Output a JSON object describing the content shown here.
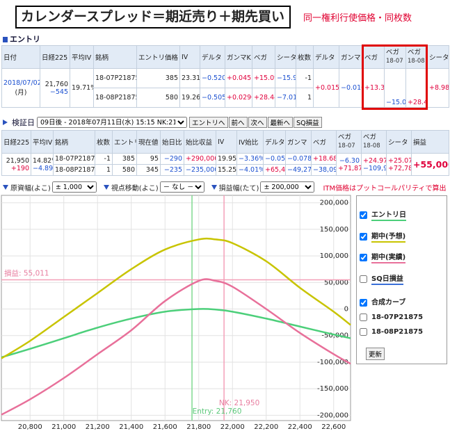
{
  "header": {
    "title": "カレンダースプレッド＝期近売り＋期先買い",
    "note": "同一権利行使価格・同枚数"
  },
  "entry": {
    "label": "エントリ",
    "headers": [
      "日付",
      "日経225",
      "平均IV",
      "銘柄",
      "エントリ価格",
      "IV",
      "デルタ",
      "ガンマK",
      "ベガ",
      "シータ",
      "枚数",
      "デルタ",
      "ガンマ",
      "ベガ",
      [
        "ベガ",
        "18-07"
      ],
      [
        "ベガ",
        "18-08"
      ],
      "シータ"
    ],
    "date": "2018/07/02",
    "weekday": "(月)",
    "nikkei": "21,760",
    "nikkei_change": "−545",
    "avg_iv": "19.71%",
    "rows": [
      [
        "18-07P21875",
        "385",
        "23.31%",
        "−0.520",
        "+0.0451",
        "+15.09",
        "−15.99",
        "-1"
      ],
      [
        "18-08P21875",
        "580",
        "19.26%",
        "−0.505",
        "+0.0290",
        "+28.44",
        "−7.01",
        "1"
      ]
    ],
    "totals": [
      "+0.015",
      "−0.0161",
      "+13.36",
      "−15.09",
      "+28.44",
      "+8.98"
    ]
  },
  "verify": {
    "label": "検証日",
    "select": "09日後 - 2018年07月11日(水) 15:15 NK:21950",
    "buttons": [
      "エントリへ",
      "前へ",
      "次へ",
      "最新へ",
      "SQ損益"
    ],
    "headers": [
      "日経225",
      "平均IV",
      "銘柄",
      "枚数",
      "エントリ",
      "現在値",
      "始日比",
      "始比収益",
      "IV",
      "IV始比",
      "デルタ",
      "ガンマ",
      "ベガ",
      [
        "ベガ",
        "18-07"
      ],
      [
        "ベガ",
        "18-08"
      ],
      "シータ",
      "損益"
    ],
    "nikkei": "21,950",
    "nikkei_change": "+190",
    "avg_iv": "14.82%",
    "avg_iv_change": "−4.89%",
    "rows": [
      [
        "18-07P21875",
        "-1",
        "385",
        "95",
        "−290",
        "+290,000",
        "19.95%",
        "−3.36%",
        "−0.054",
        "−0.0782",
        "+18.68"
      ],
      [
        "18-08P21875",
        "1",
        "580",
        "345",
        "−235",
        "−235,000",
        "15.25%",
        "−4.01%",
        "+65,496",
        "−49,276",
        "−38,092"
      ]
    ],
    "pairs": [
      [
        "−6.30",
        "+71,871"
      ],
      [
        "+24.97",
        "−109,963"
      ],
      [
        "+25.07",
        "+72,784"
      ]
    ],
    "pl": "+55,000"
  },
  "controls": [
    {
      "label": "原資幅(よこ)",
      "value": "± 1,000"
    },
    {
      "label": "視点移動(よこ)",
      "value": "－ なし －"
    },
    {
      "label": "損益幅(たて)",
      "value": "± 200,000"
    }
  ],
  "controls_note": "ITM価格はプットコールパリティで算出",
  "chart": {
    "type": "line",
    "xlim": [
      20630,
      22700
    ],
    "ylim": [
      -210000,
      214000
    ],
    "xticks": [
      {
        "value": 20800,
        "label": "20,800"
      },
      {
        "value": 21000,
        "label": "21,000"
      },
      {
        "value": 21200,
        "label": "21,200"
      },
      {
        "value": 21400,
        "label": "21,400"
      },
      {
        "value": 21600,
        "label": "21,600"
      },
      {
        "value": 21800,
        "label": "21,800"
      },
      {
        "value": 22000,
        "label": "22,000"
      },
      {
        "value": 22200,
        "label": "22,200"
      },
      {
        "value": 22400,
        "label": "22,400"
      },
      {
        "value": 22600,
        "label": "22,600"
      }
    ],
    "yticks": [
      {
        "value": 200000,
        "label": "200,000"
      },
      {
        "value": 150000,
        "label": "150,000"
      },
      {
        "value": 100000,
        "label": "100,000"
      },
      {
        "value": 50000,
        "label": "50,000"
      },
      0,
      {
        "value": -50000,
        "label": "-50,000"
      },
      {
        "value": -100000,
        "label": "-100,000"
      },
      {
        "value": -150000,
        "label": "-150,000"
      },
      {
        "value": -200000,
        "label": "-200,000"
      }
    ],
    "grid": true,
    "x": [
      20630,
      20800,
      21000,
      21200,
      21400,
      21600,
      21800,
      21900,
      22000,
      22200,
      22400,
      22600,
      22700
    ],
    "series": [
      {
        "name": "エントリ日",
        "color": "#4ccf7a",
        "checked": true,
        "values": [
          -91000,
          -75000,
          -55000,
          -35000,
          -18000,
          -5000,
          0,
          -1000,
          -5000,
          -18000,
          -33000,
          -48000,
          -55000
        ]
      },
      {
        "name": "期中(予想)",
        "color": "#c8c400",
        "checked": true,
        "values": [
          -93000,
          -60000,
          -15000,
          30000,
          75000,
          112000,
          131000,
          131000,
          124000,
          90000,
          40000,
          -5000,
          -30000
        ]
      },
      {
        "name": "期中(実績)",
        "color": "#e8709a",
        "checked": true,
        "values": [
          -199000,
          -170000,
          -130000,
          -85000,
          -40000,
          15000,
          53000,
          53000,
          42000,
          0,
          -45000,
          -85000,
          -103000
        ]
      }
    ],
    "markers": {
      "entry": {
        "label": "Entry: 21,760",
        "value": 21760,
        "color": "#7fd98f"
      },
      "nk": {
        "label": "NK: 21,950",
        "value": 21950,
        "color": "#f4a0b8"
      },
      "pl": {
        "label": "損益: 55,011",
        "value": 55011,
        "color": "#f4a0b8"
      }
    },
    "options": [
      {
        "label": "SQ日損益",
        "checked": false,
        "color": "#3a6fd8"
      },
      {
        "label": "合成カーブ",
        "checked": true
      },
      {
        "label": "18-07P21875",
        "checked": false
      },
      {
        "label": "18-08P21875",
        "checked": false
      }
    ],
    "button": "更新"
  }
}
